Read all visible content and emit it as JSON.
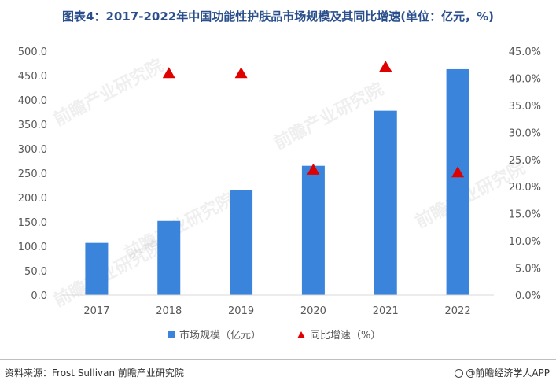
{
  "title": "图表4：2017-2022年中国功能性护肤品市场规模及其同比增速(单位：亿元，%)",
  "source": "资料来源：Frost Sullivan 前瞻产业研究院",
  "brand": "@前瞻经济学人APP",
  "watermark": "前瞻产业研究院",
  "colors": {
    "bar": "#3b84dc",
    "triangle": "#e00000",
    "axis_text": "#595959",
    "title": "#2b4f8c"
  },
  "chart_data": {
    "type": "bar",
    "categories": [
      "2017",
      "2018",
      "2019",
      "2020",
      "2021",
      "2022"
    ],
    "series": [
      {
        "name": "市场规模（亿元）",
        "type": "bar",
        "axis": "left",
        "values": [
          107,
          152,
          215,
          265,
          378,
          463
        ]
      },
      {
        "name": "同比增速（%）",
        "type": "scatter",
        "marker": "triangle",
        "axis": "right",
        "values": [
          null,
          40.9,
          40.9,
          23.1,
          42.1,
          22.6
        ]
      }
    ],
    "y_left": {
      "min": 0,
      "max": 500,
      "ticks": [
        "0.0",
        "50.0",
        "100.0",
        "150.0",
        "200.0",
        "250.0",
        "300.0",
        "350.0",
        "400.0",
        "450.0",
        "500.0"
      ]
    },
    "y_right": {
      "min": 0,
      "max": 45,
      "ticks": [
        "0.0%",
        "5.0%",
        "10.0%",
        "15.0%",
        "20.0%",
        "25.0%",
        "30.0%",
        "35.0%",
        "40.0%",
        "45.0%"
      ]
    },
    "legend_position": "bottom",
    "grid": false
  }
}
